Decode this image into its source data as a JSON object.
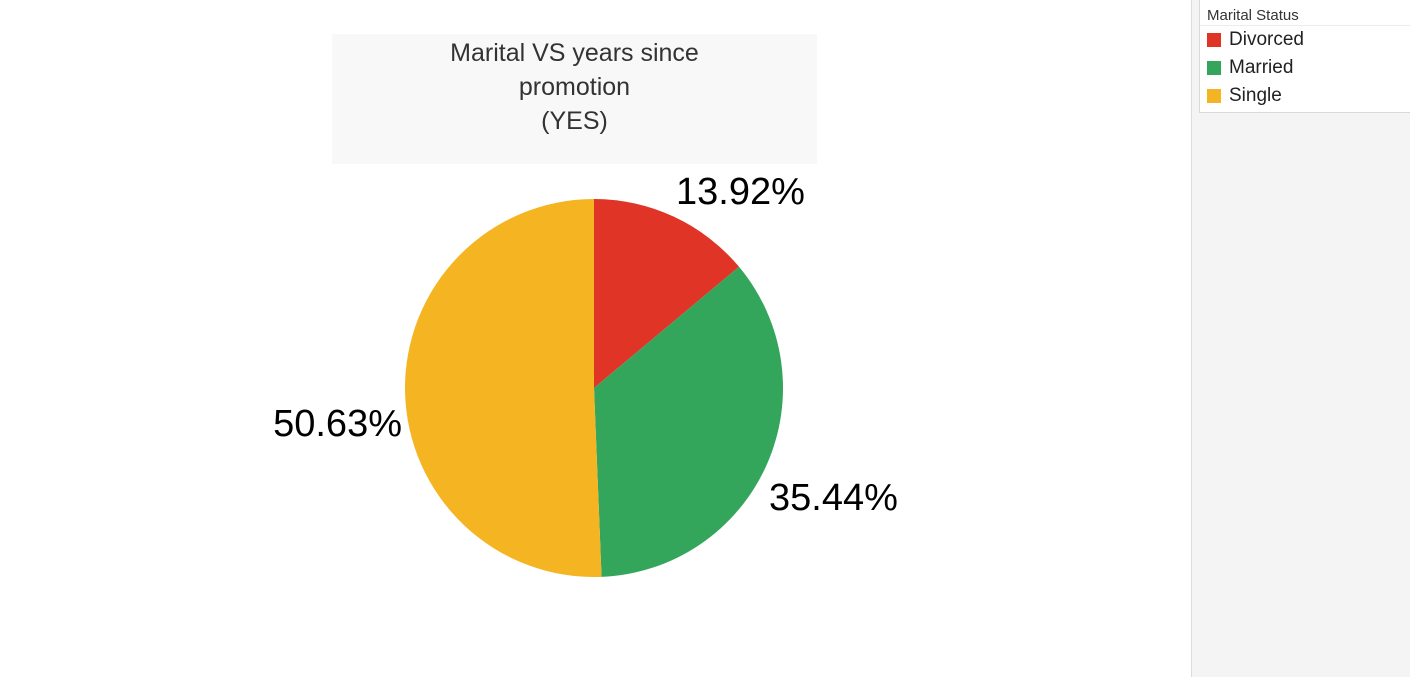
{
  "chart_data": {
    "type": "pie",
    "title_lines": [
      "Marital VS years since",
      "promotion",
      "(YES)"
    ],
    "legend_title": "Marital Status",
    "categories": [
      "Divorced",
      "Married",
      "Single"
    ],
    "values": [
      13.92,
      35.44,
      50.63
    ],
    "labels": [
      "13.92%",
      "35.44%",
      "50.63%"
    ],
    "colors": [
      "#e03426",
      "#34a65c",
      "#f5b523"
    ],
    "legend_placement": "top-right"
  }
}
